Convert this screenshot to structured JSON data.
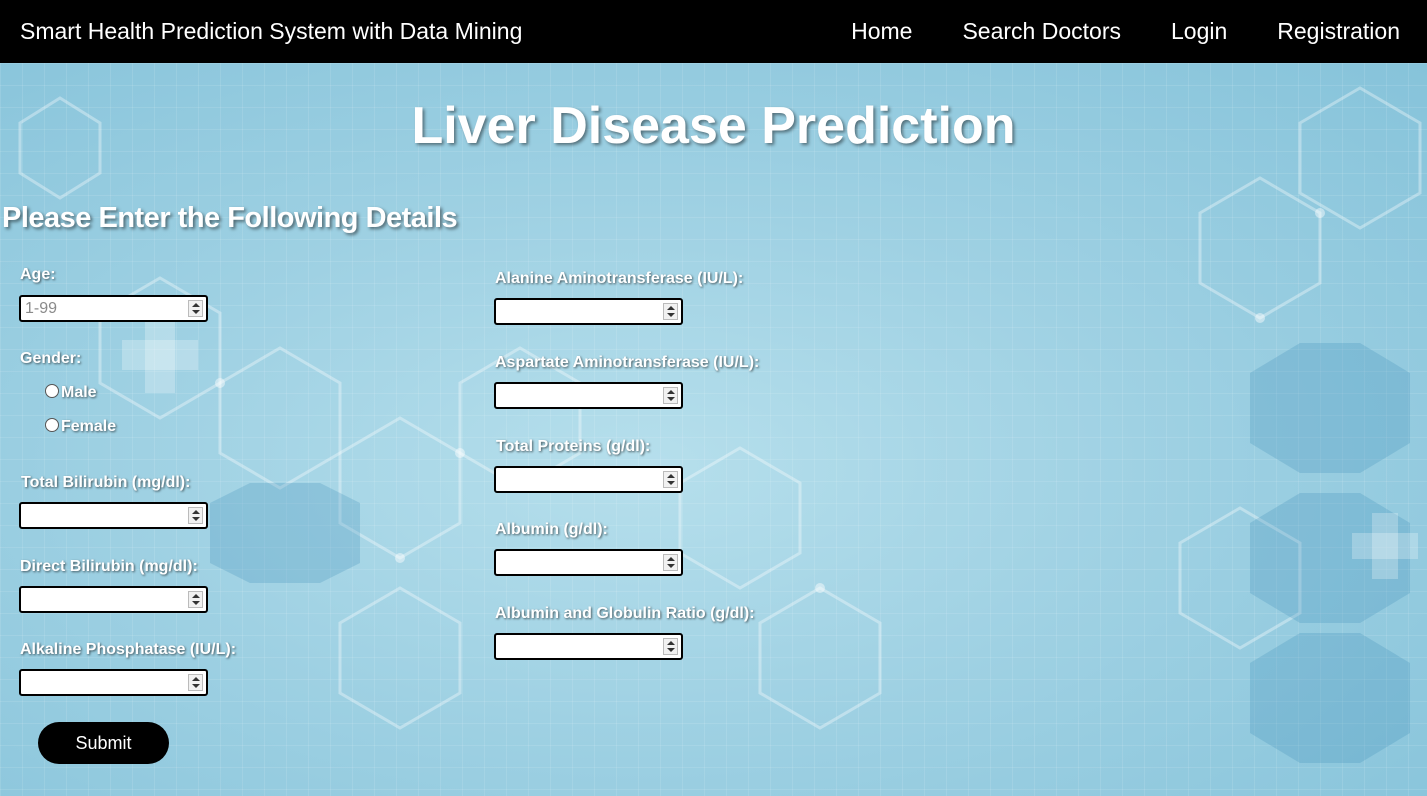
{
  "header": {
    "brand": "Smart Health Prediction System with Data Mining",
    "nav": [
      {
        "label": "Home"
      },
      {
        "label": "Search Doctors"
      },
      {
        "label": "Login"
      },
      {
        "label": "Registration"
      }
    ]
  },
  "page": {
    "title": "Liver Disease Prediction",
    "subtitle": "Please Enter the Following Details"
  },
  "form": {
    "age": {
      "label": "Age:",
      "placeholder": "1-99",
      "value": ""
    },
    "gender": {
      "label": "Gender:",
      "options": [
        "Male",
        "Female"
      ],
      "selected": null
    },
    "total_bilirubin": {
      "label": "Total Bilirubin (mg/dl):",
      "value": ""
    },
    "direct_bilirubin": {
      "label": "Direct Bilirubin (mg/dl):",
      "value": ""
    },
    "alkaline_phosphatase": {
      "label": "Alkaline Phosphatase (IU/L):",
      "value": ""
    },
    "alanine_aminotransferase": {
      "label": "Alanine Aminotransferase (IU/L):",
      "value": ""
    },
    "aspartate_aminotransferase": {
      "label": "Aspartate Aminotransferase (IU/L):",
      "value": ""
    },
    "total_proteins": {
      "label": "Total Proteins (g/dl):",
      "value": ""
    },
    "albumin": {
      "label": "Albumin (g/dl):",
      "value": ""
    },
    "ag_ratio": {
      "label": "Albumin and Globulin Ratio (g/dl):",
      "value": ""
    },
    "submit_label": "Submit"
  },
  "colors": {
    "topbar": "#000000",
    "background": "#9ccfe2",
    "button": "#000000",
    "text": "#ffffff"
  }
}
